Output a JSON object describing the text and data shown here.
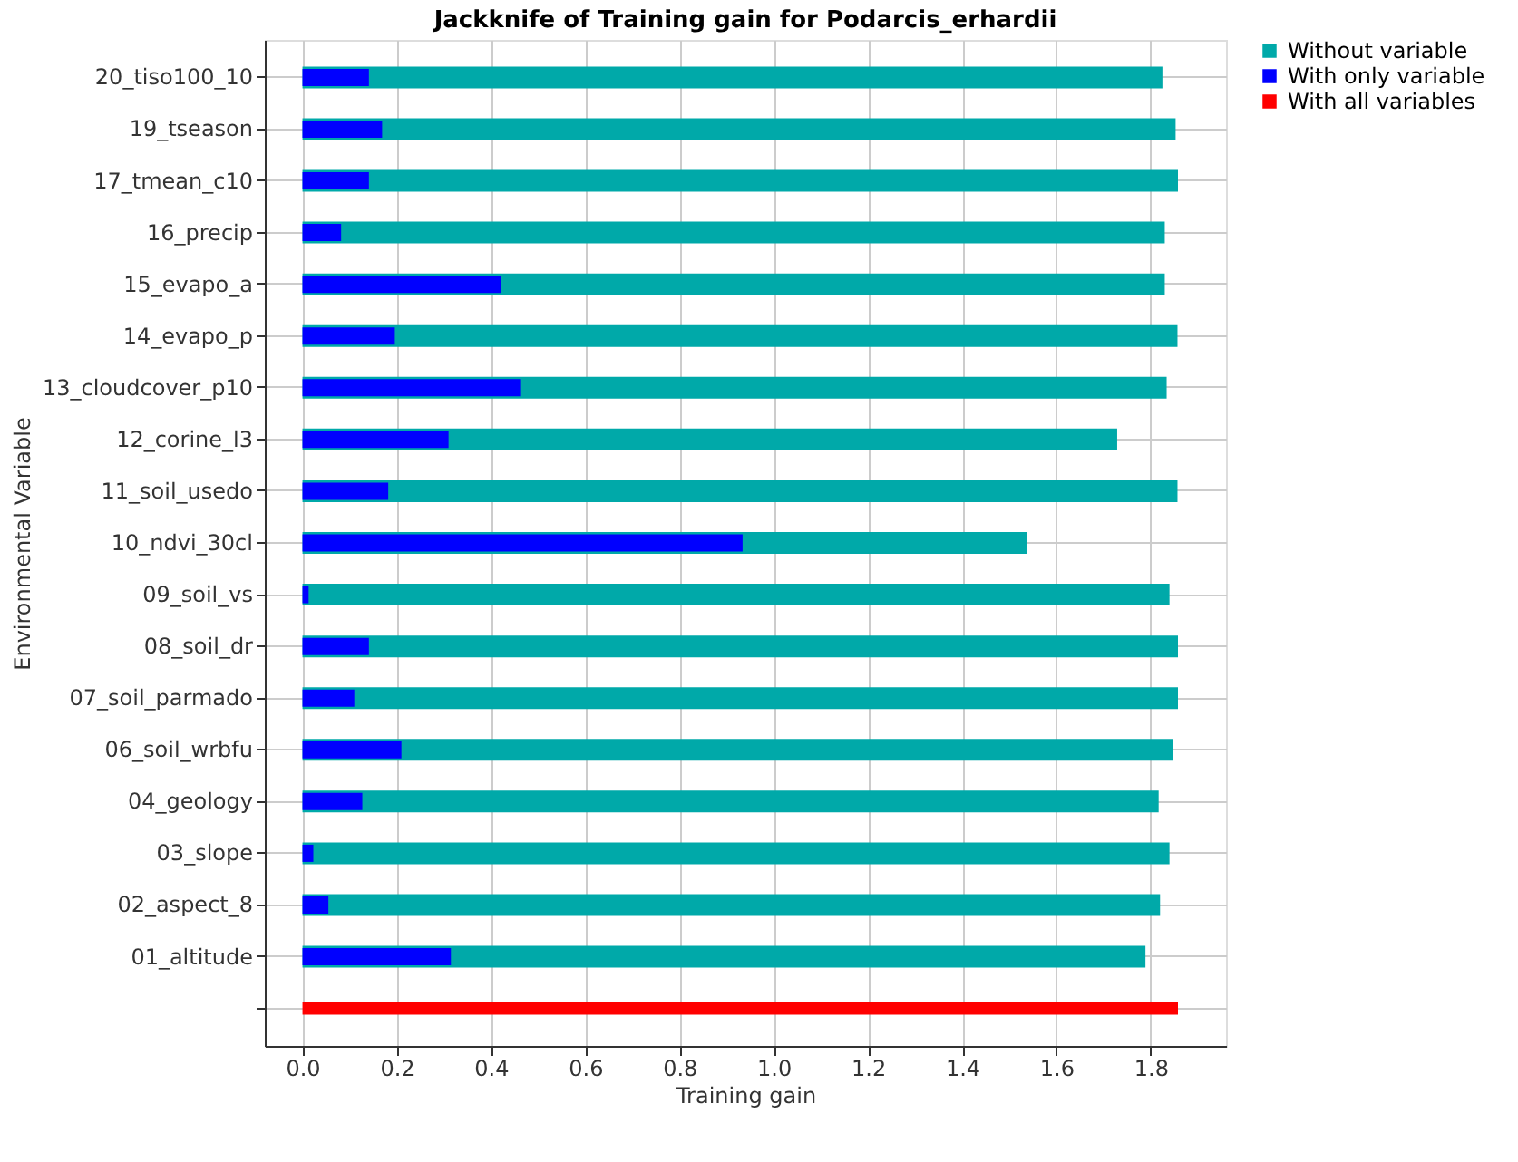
{
  "chart_data": {
    "type": "bar",
    "orientation": "horizontal",
    "title": "Jackknife of Training gain for Podarcis_erhardii",
    "xlabel": "Training gain",
    "ylabel": "Environmental Variable",
    "categories": [
      "20_tiso100_10",
      "19_tseason",
      "17_tmean_c10",
      "16_precip",
      "15_evapo_a",
      "14_evapo_p",
      "13_cloudcover_p10",
      "12_corine_l3",
      "11_soil_usedo",
      "10_ndvi_30cl",
      "09_soil_vs",
      "08_soil_dr",
      "07_soil_parmado",
      "06_soil_wrbfu",
      "04_geology",
      "03_slope",
      "02_aspect_8",
      "01_altitude",
      null
    ],
    "series": [
      {
        "name": "Without variable",
        "color": "#00a9a9",
        "values": [
          1.825,
          1.853,
          1.858,
          1.83,
          1.83,
          1.857,
          1.834,
          1.729,
          1.857,
          1.537,
          1.84,
          1.858,
          1.858,
          1.848,
          1.817,
          1.84,
          1.82,
          1.789,
          null
        ]
      },
      {
        "name": "With only variable",
        "color": "#0000ff",
        "values": [
          0.141,
          0.169,
          0.141,
          0.082,
          0.421,
          0.196,
          0.462,
          0.31,
          0.182,
          0.934,
          0.013,
          0.141,
          0.11,
          0.21,
          0.127,
          0.023,
          0.055,
          0.315,
          null
        ]
      },
      {
        "name": "With all variables",
        "color": "#ff0000",
        "values": [
          null,
          null,
          null,
          null,
          null,
          null,
          null,
          null,
          null,
          null,
          null,
          null,
          null,
          null,
          null,
          null,
          null,
          null,
          1.858
        ]
      }
    ],
    "xlim": [
      -0.08,
      1.96
    ],
    "xticks": [
      {
        "value": 0,
        "label": "0.0"
      },
      0.2,
      0.4,
      0.6,
      0.8,
      {
        "value": 1,
        "label": "1.0"
      },
      1.2,
      1.4,
      1.6,
      1.8
    ],
    "grid": true,
    "legend": "top right"
  }
}
